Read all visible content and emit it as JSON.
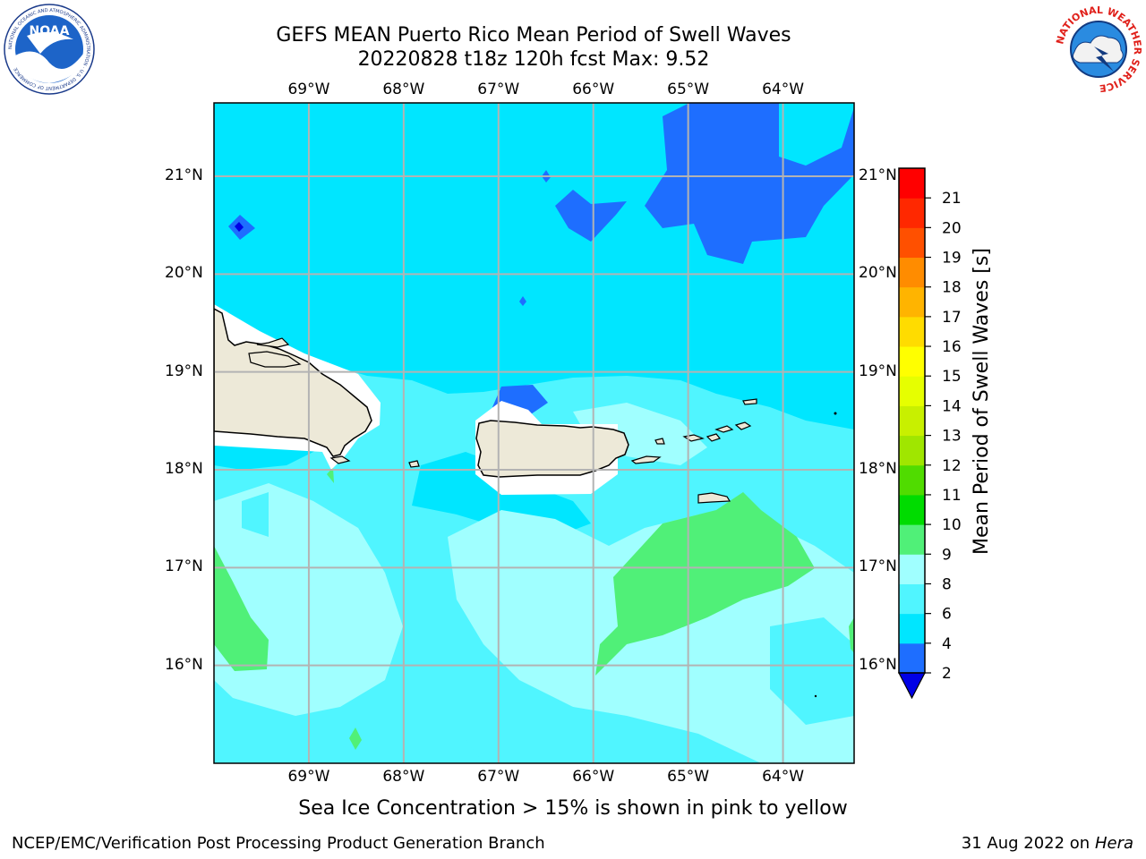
{
  "header": {
    "title_line1": "GEFS MEAN Puerto Rico Mean Period of Swell Waves",
    "title_line2": "20220828 t18z 120h fcst   Max: 9.52"
  },
  "map": {
    "lon_labels": [
      "69°W",
      "68°W",
      "67°W",
      "66°W",
      "65°W",
      "64°W"
    ],
    "lat_labels": [
      "21°N",
      "20°N",
      "19°N",
      "18°N",
      "17°N",
      "16°N"
    ],
    "lon_values": [
      -69,
      -68,
      -67,
      -66,
      -65,
      -64
    ],
    "lat_values": [
      21,
      20,
      19,
      18,
      17,
      16
    ],
    "lon_range": [
      -70.0,
      -63.25
    ],
    "lat_range": [
      15.0,
      21.75
    ]
  },
  "colorbar": {
    "label": "Mean Period of Swell Waves [s]",
    "ticks": [
      "2",
      "4",
      "6",
      "8",
      "9",
      "10",
      "11",
      "12",
      "13",
      "14",
      "15",
      "16",
      "17",
      "18",
      "19",
      "20",
      "21"
    ],
    "colors": [
      "#1e6eff",
      "#00e6ff",
      "#50f5ff",
      "#a0ffff",
      "#50f078",
      "#00dc00",
      "#50dc00",
      "#a0e600",
      "#c8f000",
      "#e6ff00",
      "#ffff00",
      "#ffdc00",
      "#ffb400",
      "#ff8c00",
      "#ff5000",
      "#ff2800",
      "#ff0000"
    ],
    "extend_below_color": "#0000e6"
  },
  "note": "Sea Ice Concentration > 15% is shown in pink to yellow",
  "footer": {
    "left": "NCEP/EMC/Verification Post Processing Product Generation Branch",
    "right_date": "31 Aug 2022 on",
    "right_machine": "Hera"
  },
  "logos": {
    "noaa_text": "NOAA",
    "noaa_ring": "NATIONAL OCEANIC AND ATMOSPHERIC ADMINISTRATION · U.S. DEPARTMENT OF COMMERCE",
    "nws_ring": "NATIONAL WEATHER SERVICE"
  }
}
